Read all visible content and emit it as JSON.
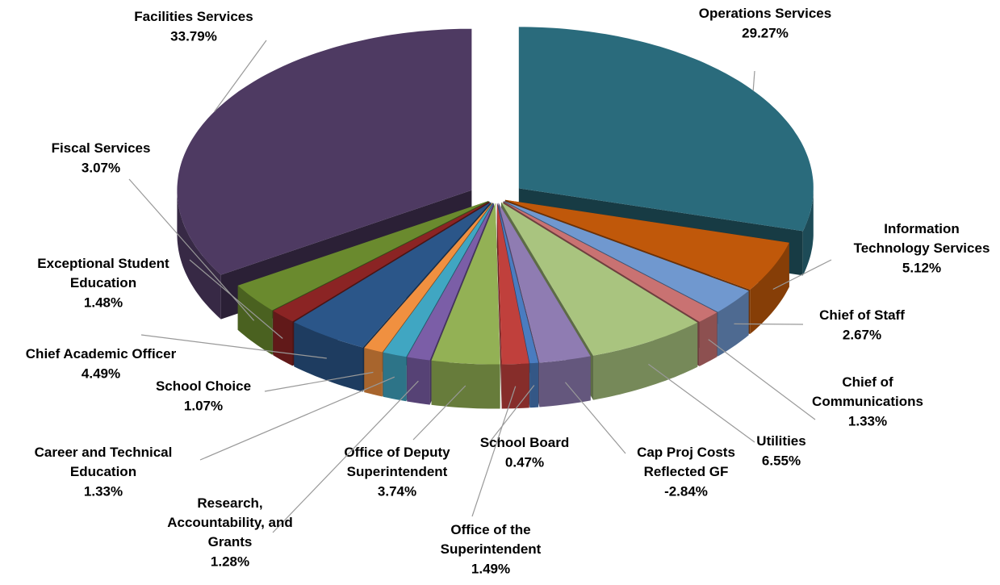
{
  "chart_data": {
    "type": "pie",
    "categories": [
      "Operations Services",
      "Information Technology Services",
      "Chief of Staff",
      "Chief of Communications",
      "Utilities",
      "Cap Proj Costs Reflected GF",
      "School Board",
      "Office of the Superintendent",
      "Office of Deputy Superintendent",
      "Research, Accountability, and Grants",
      "Career and Technical Education",
      "School Choice",
      "Chief Academic Officer",
      "Exceptional Student Education",
      "Fiscal Services",
      "Facilities Services"
    ],
    "values": [
      29.27,
      5.12,
      2.67,
      1.33,
      6.55,
      -2.84,
      0.47,
      1.49,
      3.74,
      1.28,
      1.33,
      1.07,
      4.49,
      1.48,
      3.07,
      33.79
    ],
    "value_labels": [
      "29.27%",
      "5.12%",
      "2.67%",
      "1.33%",
      "6.55%",
      "-2.84%",
      "0.47%",
      "1.49%",
      "3.74%",
      "1.28%",
      "1.33%",
      "1.07%",
      "4.49%",
      "1.48%",
      "3.07%",
      "33.79%"
    ],
    "colors": [
      "#2a6b7c",
      "#c0580a",
      "#7098cf",
      "#c97272",
      "#a9c47f",
      "#8f7cb2",
      "#4a7cc0",
      "#c0403c",
      "#93b155",
      "#7b5ea7",
      "#40a6c2",
      "#f09040",
      "#2b5689",
      "#8b2424",
      "#6a8a2e",
      "#4e3a62"
    ]
  }
}
